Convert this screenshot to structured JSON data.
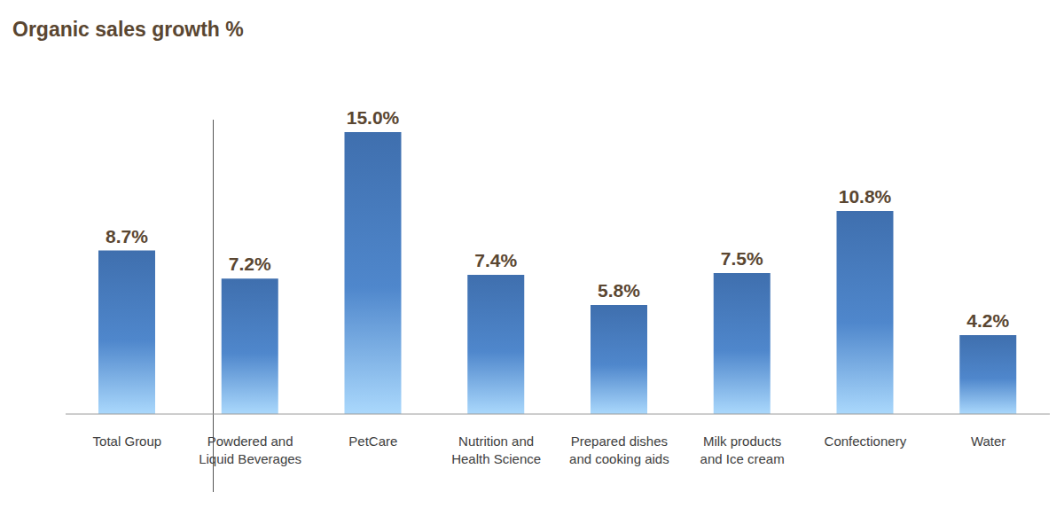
{
  "chart_data": {
    "type": "bar",
    "title": "Organic sales growth %",
    "categories": [
      "Total Group",
      "Powdered and Liquid Beverages",
      "PetCare",
      "Nutrition and Health Science",
      "Prepared dishes and cooking aids",
      "Milk products and Ice cream",
      "Confectionery",
      "Water"
    ],
    "values": [
      8.7,
      7.2,
      15.0,
      7.4,
      5.8,
      7.5,
      10.8,
      4.2
    ],
    "value_labels": [
      "8.7%",
      "7.2%",
      "15.0%",
      "7.4%",
      "5.8%",
      "7.5%",
      "10.8%",
      "4.2%"
    ],
    "color": "#3f6fae",
    "ylim": [
      0,
      15
    ],
    "grid": false,
    "data_labels": true,
    "tick_labels": false
  }
}
